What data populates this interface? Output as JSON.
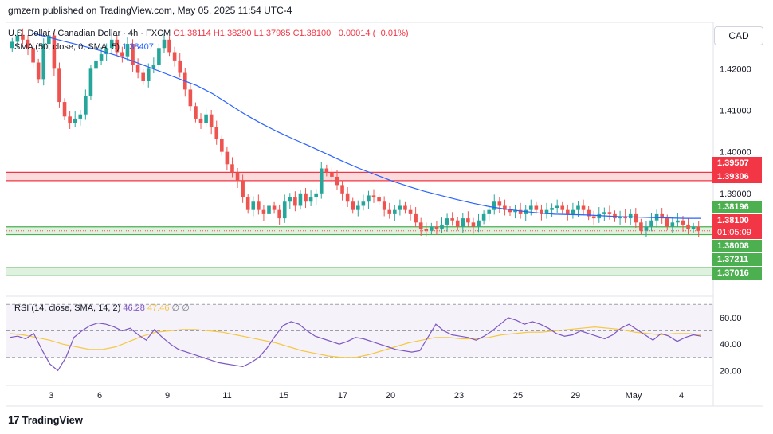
{
  "header": {
    "published_line": "gmzern published on TradingView.com, May 05, 2025 11:54 UTC-4"
  },
  "legend": {
    "symbol": "U.S. Dollar / Canadian Dollar · 4h · FXCM",
    "open": "O1.38114",
    "high": "H1.38290",
    "low": "L1.37985",
    "close": "C1.38100",
    "change": "−0.00014 (−0.01%)",
    "sma_label": "SMA (50, close, 0, SMA, 5)",
    "sma_value": "1.38407"
  },
  "rsi_legend": {
    "label": "RSI (14, close, SMA, 14, 2)",
    "rsi_value": "46.28",
    "rsi_ma_value": "47.46",
    "extra1": "∅",
    "extra2": "∅"
  },
  "axis": {
    "currency": "CAD"
  },
  "price_tags": {
    "resistance_top": "1.39507",
    "resistance_bottom": "1.39306",
    "sma_tag": "1.38196",
    "last_price": "1.38100",
    "countdown": "01:05:09",
    "support_top": "1.38008",
    "support_mid": "1.37211",
    "support_bottom": "1.37016"
  },
  "footer": {
    "brand": "TradingView"
  },
  "colors": {
    "up": "#26a69a",
    "down": "#ef5350",
    "sma": "#2962ff",
    "rsi": "#7e57c2",
    "rsi_ma": "#f5c842",
    "resistance": "#f23645",
    "support": "#4caf50"
  },
  "chart_data": [
    {
      "type": "candlestick",
      "title": "U.S. Dollar / Canadian Dollar · 4h · FXCM",
      "ylim": [
        1.366,
        1.4308
      ],
      "y_ticks": [
        "1.42000",
        "1.41000",
        "1.40000",
        "1.39000"
      ],
      "x_ticks": [
        "3",
        "6",
        "9",
        "11",
        "15",
        "17",
        "20",
        "23",
        "25",
        "29",
        "May",
        "4"
      ],
      "zones": [
        {
          "name": "resistance",
          "from": 1.39306,
          "to": 1.39507
        },
        {
          "name": "support_near",
          "from": 1.38008,
          "to": 1.38196
        },
        {
          "name": "support_far",
          "from": 1.37016,
          "to": 1.37211
        }
      ],
      "close_series": [
        1.4265,
        1.428,
        1.427,
        1.425,
        1.4215,
        1.4175,
        1.426,
        1.428,
        1.42,
        1.412,
        1.4085,
        1.407,
        1.408,
        1.409,
        1.4135,
        1.42,
        1.422,
        1.4235,
        1.425,
        1.427,
        1.424,
        1.423,
        1.426,
        1.421,
        1.419,
        1.417,
        1.42,
        1.421,
        1.425,
        1.427,
        1.424,
        1.422,
        1.419,
        1.415,
        1.411,
        1.408,
        1.407,
        1.409,
        1.406,
        1.403,
        1.4,
        1.397,
        1.395,
        1.393,
        1.389,
        1.386,
        1.388,
        1.386,
        1.385,
        1.387,
        1.386,
        1.384,
        1.388,
        1.389,
        1.387,
        1.39,
        1.388,
        1.389,
        1.39,
        1.396,
        1.395,
        1.394,
        1.392,
        1.39,
        1.388,
        1.386,
        1.387,
        1.388,
        1.3895,
        1.389,
        1.388,
        1.386,
        1.385,
        1.386,
        1.387,
        1.386,
        1.385,
        1.383,
        1.3815,
        1.381,
        1.382,
        1.3815,
        1.3825,
        1.384,
        1.3835,
        1.382,
        1.384,
        1.383,
        1.382,
        1.3835,
        1.385,
        1.386,
        1.388,
        1.387,
        1.386,
        1.3855,
        1.386,
        1.385,
        1.386,
        1.387,
        1.386,
        1.385,
        1.386,
        1.3865,
        1.387,
        1.386,
        1.385,
        1.386,
        1.387,
        1.386,
        1.3845,
        1.384,
        1.385,
        1.3855,
        1.385,
        1.384,
        1.3845,
        1.384,
        1.385,
        1.383,
        1.381,
        1.382,
        1.3835,
        1.385,
        1.384,
        1.382,
        1.383,
        1.3835,
        1.3825,
        1.3815,
        1.382,
        1.381
      ],
      "sma_series": [
        1.4285,
        1.4275,
        1.4265,
        1.4255,
        1.4245,
        1.4233,
        1.422,
        1.4205,
        1.419,
        1.4175,
        1.416,
        1.414,
        1.4115,
        1.409,
        1.4068,
        1.4048,
        1.403,
        1.4013,
        1.3995,
        1.3977,
        1.396,
        1.3945,
        1.393,
        1.3917,
        1.3905,
        1.3895,
        1.3885,
        1.3876,
        1.3868,
        1.3862,
        1.3857,
        1.3853,
        1.385,
        1.3849,
        1.3848,
        1.3846,
        1.3844,
        1.3843,
        1.3842,
        1.3841,
        1.384,
        1.384
      ]
    },
    {
      "type": "line",
      "title": "RSI (14, close, SMA, 14, 2)",
      "ylim": [
        10,
        75
      ],
      "y_ticks": [
        "60.00",
        "40.00",
        "20.00"
      ],
      "bands": [
        30,
        50,
        70
      ],
      "rsi_series": [
        45,
        46,
        44,
        48,
        36,
        25,
        20,
        30,
        45,
        50,
        54,
        56,
        55,
        53,
        50,
        52,
        47,
        43,
        51,
        45,
        40,
        36,
        34,
        32,
        30,
        28,
        26,
        25,
        24,
        23,
        26,
        30,
        37,
        46,
        54,
        57,
        55,
        50,
        46,
        44,
        42,
        40,
        42,
        45,
        44,
        42,
        40,
        38,
        36,
        35,
        34,
        35,
        45,
        55,
        50,
        47,
        46,
        45,
        43,
        46,
        50,
        55,
        60,
        58,
        55,
        57,
        55,
        52,
        48,
        46,
        47,
        50,
        48,
        46,
        44,
        47,
        52,
        55,
        51,
        47,
        43,
        48,
        46,
        42,
        45,
        47,
        46
      ],
      "rsi_ma_series": [
        48,
        47,
        45,
        43,
        40,
        38,
        36,
        36,
        38,
        42,
        46,
        49,
        50,
        51,
        51,
        50,
        49,
        47,
        45,
        43,
        41,
        38,
        35,
        33,
        31,
        30,
        30,
        32,
        35,
        38,
        41,
        43,
        45,
        45,
        44,
        44,
        45,
        47,
        48,
        49,
        49,
        50,
        51,
        52,
        53,
        52,
        51,
        49,
        48,
        47,
        48,
        48,
        47
      ]
    }
  ]
}
